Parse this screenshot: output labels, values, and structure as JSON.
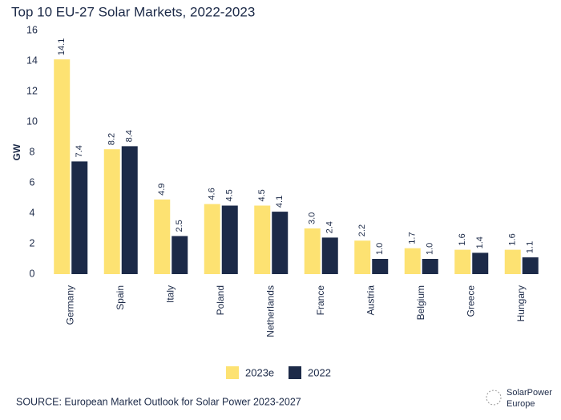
{
  "chart_data": {
    "type": "bar",
    "title": "Top 10 EU-27 Solar Markets, 2022-2023",
    "y_label": "GW",
    "categories": [
      "Germany",
      "Spain",
      "Italy",
      "Poland",
      "Netherlands",
      "France",
      "Austria",
      "Belgium",
      "Greece",
      "Hungary"
    ],
    "series": [
      {
        "name": "2023e",
        "color": "#fde272",
        "values": [
          14.1,
          8.2,
          4.9,
          4.6,
          4.5,
          3.0,
          2.2,
          1.7,
          1.6,
          1.6
        ],
        "value_labels": [
          "14.1",
          "8.2",
          "4.9",
          "4.6",
          "4.5",
          "3.0",
          "2.2",
          "1.7",
          "1.6",
          "1.6"
        ]
      },
      {
        "name": "2022",
        "color": "#1c2a48",
        "values": [
          7.4,
          8.4,
          2.5,
          4.5,
          4.1,
          2.4,
          1.0,
          1.0,
          1.4,
          1.1
        ],
        "value_labels": [
          "7.4",
          "8.4",
          "2.5",
          "4.5",
          "4.1",
          "2.4",
          "1.0",
          "1.0",
          "1.4",
          "1.1"
        ]
      }
    ],
    "ylim": [
      0,
      16
    ],
    "yticks": [
      0,
      2,
      4,
      6,
      8,
      10,
      12,
      14,
      16
    ],
    "grid": false,
    "source": "SOURCE: European Market Outlook for Solar Power 2023-2027",
    "logo": [
      "SolarPower",
      "Europe"
    ]
  }
}
